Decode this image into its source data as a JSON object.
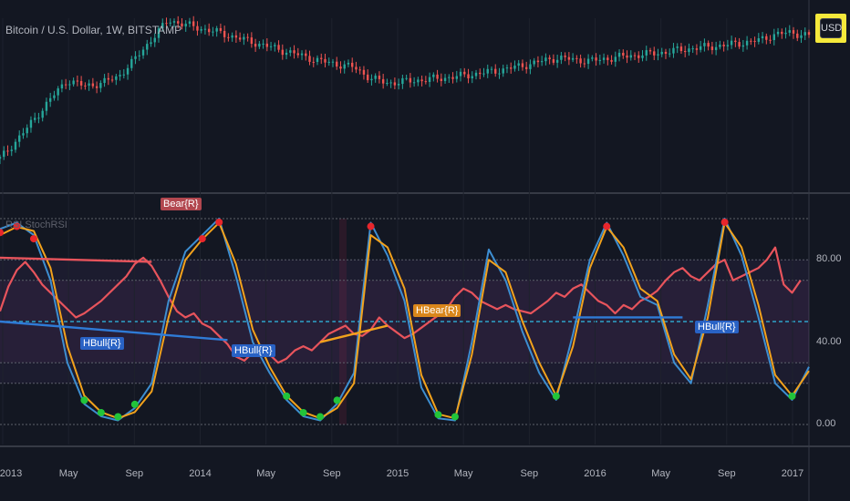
{
  "header": {
    "title": "Bitcoin / U.S. Dollar, 1W, BITSTAMP"
  },
  "currency_button": {
    "label": "USD"
  },
  "indicator": {
    "title": "RSI StochRSI"
  },
  "colors": {
    "background": "#131722",
    "candle_up": "#26a69a",
    "candle_down": "#ef5350",
    "rsi": "#e8545c",
    "stoch_k": "#3d8ed1",
    "stoch_d": "#f2a21c",
    "bull_dot": "#22c43a",
    "bear_dot": "#e8262c",
    "highlight": "#f5e93b"
  },
  "chart_data": [
    {
      "type": "candlestick",
      "title": "Bitcoin / U.S. Dollar, 1W, BITSTAMP",
      "price_trend": [
        [
          0,
          12
        ],
        [
          3,
          30
        ],
        [
          6,
          50
        ],
        [
          8,
          62
        ],
        [
          10,
          58
        ],
        [
          12,
          60
        ],
        [
          14,
          64
        ],
        [
          16,
          75
        ],
        [
          18,
          88
        ],
        [
          20,
          100
        ],
        [
          22,
          97
        ],
        [
          26,
          92
        ],
        [
          30,
          86
        ],
        [
          34,
          80
        ],
        [
          38,
          74
        ],
        [
          42,
          70
        ],
        [
          44,
          63
        ],
        [
          46,
          60
        ],
        [
          50,
          62
        ],
        [
          54,
          64
        ],
        [
          58,
          67
        ],
        [
          62,
          71
        ],
        [
          66,
          76
        ],
        [
          70,
          74
        ],
        [
          74,
          77
        ],
        [
          78,
          79
        ],
        [
          82,
          82
        ],
        [
          86,
          84
        ],
        [
          90,
          87
        ],
        [
          92,
          91
        ],
        [
          94,
          92
        ],
        [
          96,
          90
        ]
      ]
    },
    {
      "type": "line",
      "title": "RSI StochRSI",
      "y_ticks": [
        "80.00",
        "40.00",
        "0.00"
      ],
      "x_ticks": [
        "2013",
        "May",
        "Sep",
        "2014",
        "May",
        "Sep",
        "2015",
        "May",
        "Sep",
        "2016",
        "May",
        "Sep",
        "2017"
      ],
      "levels": [
        100,
        80,
        70,
        50,
        30,
        20,
        0
      ],
      "series": [
        {
          "values": [
            [
              0,
              55
            ],
            [
              1,
              67
            ],
            [
              2,
              75
            ],
            [
              3,
              79
            ],
            [
              4,
              74
            ],
            [
              5,
              68
            ],
            [
              6,
              64
            ],
            [
              7,
              60
            ],
            [
              8,
              56
            ],
            [
              9,
              52
            ],
            [
              10,
              54
            ],
            [
              11,
              57
            ],
            [
              12,
              60
            ],
            [
              13,
              64
            ],
            [
              14,
              68
            ],
            [
              15,
              72
            ],
            [
              16,
              78
            ],
            [
              17,
              81
            ],
            [
              18,
              77
            ],
            [
              19,
              70
            ],
            [
              20,
              62
            ],
            [
              21,
              55
            ],
            [
              22,
              52
            ],
            [
              23,
              54
            ],
            [
              24,
              49
            ],
            [
              25,
              47
            ],
            [
              26,
              43
            ],
            [
              27,
              39
            ],
            [
              28,
              33
            ],
            [
              29,
              31
            ],
            [
              30,
              35
            ],
            [
              31,
              38
            ],
            [
              32,
              34
            ],
            [
              33,
              30
            ],
            [
              34,
              32
            ],
            [
              35,
              36
            ],
            [
              36,
              38
            ],
            [
              37,
              36
            ],
            [
              38,
              40
            ],
            [
              39,
              44
            ],
            [
              40,
              46
            ],
            [
              41,
              48
            ],
            [
              42,
              44
            ],
            [
              43,
              43
            ],
            [
              44,
              46
            ],
            [
              45,
              52
            ],
            [
              46,
              48
            ],
            [
              47,
              45
            ],
            [
              48,
              42
            ],
            [
              49,
              44
            ],
            [
              50,
              47
            ],
            [
              51,
              50
            ],
            [
              52,
              53
            ],
            [
              53,
              56
            ],
            [
              54,
              62
            ],
            [
              55,
              66
            ],
            [
              56,
              64
            ],
            [
              57,
              60
            ],
            [
              58,
              58
            ],
            [
              59,
              56
            ],
            [
              60,
              58
            ],
            [
              61,
              56
            ],
            [
              62,
              55
            ],
            [
              63,
              54
            ],
            [
              64,
              57
            ],
            [
              65,
              60
            ],
            [
              66,
              64
            ],
            [
              67,
              62
            ],
            [
              68,
              66
            ],
            [
              69,
              68
            ],
            [
              70,
              64
            ],
            [
              71,
              60
            ],
            [
              72,
              58
            ],
            [
              73,
              54
            ],
            [
              74,
              58
            ],
            [
              75,
              56
            ],
            [
              76,
              60
            ],
            [
              77,
              62
            ],
            [
              78,
              65
            ],
            [
              79,
              70
            ],
            [
              80,
              74
            ],
            [
              81,
              76
            ],
            [
              82,
              72
            ],
            [
              83,
              70
            ],
            [
              84,
              74
            ],
            [
              85,
              78
            ],
            [
              86,
              80
            ],
            [
              87,
              70
            ],
            [
              88,
              72
            ],
            [
              89,
              74
            ],
            [
              90,
              76
            ],
            [
              91,
              80
            ],
            [
              92,
              86
            ],
            [
              93,
              68
            ],
            [
              94,
              64
            ],
            [
              95,
              70
            ]
          ]
        },
        {
          "values": [
            [
              0,
              95
            ],
            [
              2,
              98
            ],
            [
              4,
              92
            ],
            [
              6,
              70
            ],
            [
              8,
              30
            ],
            [
              10,
              10
            ],
            [
              12,
              4
            ],
            [
              14,
              2
            ],
            [
              16,
              8
            ],
            [
              18,
              20
            ],
            [
              20,
              60
            ],
            [
              22,
              84
            ],
            [
              24,
              92
            ],
            [
              26,
              100
            ],
            [
              28,
              72
            ],
            [
              30,
              40
            ],
            [
              32,
              25
            ],
            [
              34,
              12
            ],
            [
              36,
              4
            ],
            [
              38,
              2
            ],
            [
              40,
              10
            ],
            [
              42,
              25
            ],
            [
              44,
              98
            ],
            [
              46,
              82
            ],
            [
              48,
              60
            ],
            [
              50,
              18
            ],
            [
              52,
              3
            ],
            [
              54,
              2
            ],
            [
              56,
              40
            ],
            [
              58,
              85
            ],
            [
              60,
              70
            ],
            [
              62,
              45
            ],
            [
              64,
              25
            ],
            [
              66,
              12
            ],
            [
              68,
              44
            ],
            [
              70,
              80
            ],
            [
              72,
              98
            ],
            [
              74,
              82
            ],
            [
              76,
              62
            ],
            [
              78,
              58
            ],
            [
              80,
              30
            ],
            [
              82,
              20
            ],
            [
              84,
              58
            ],
            [
              86,
              100
            ],
            [
              88,
              82
            ],
            [
              90,
              52
            ],
            [
              92,
              20
            ],
            [
              94,
              12
            ],
            [
              96,
              28
            ]
          ]
        },
        {
          "values": [
            [
              0,
              92
            ],
            [
              2,
              96
            ],
            [
              4,
              94
            ],
            [
              6,
              76
            ],
            [
              8,
              38
            ],
            [
              10,
              14
            ],
            [
              12,
              6
            ],
            [
              14,
              3
            ],
            [
              16,
              6
            ],
            [
              18,
              16
            ],
            [
              20,
              52
            ],
            [
              22,
              80
            ],
            [
              24,
              90
            ],
            [
              26,
              98
            ],
            [
              28,
              78
            ],
            [
              30,
              46
            ],
            [
              32,
              28
            ],
            [
              34,
              14
            ],
            [
              36,
              6
            ],
            [
              38,
              3
            ],
            [
              40,
              8
            ],
            [
              42,
              20
            ],
            [
              44,
              92
            ],
            [
              46,
              86
            ],
            [
              48,
              66
            ],
            [
              50,
              24
            ],
            [
              52,
              5
            ],
            [
              54,
              3
            ],
            [
              56,
              34
            ],
            [
              58,
              80
            ],
            [
              60,
              74
            ],
            [
              62,
              50
            ],
            [
              64,
              30
            ],
            [
              66,
              14
            ],
            [
              68,
              38
            ],
            [
              70,
              76
            ],
            [
              72,
              96
            ],
            [
              74,
              86
            ],
            [
              76,
              66
            ],
            [
              78,
              60
            ],
            [
              80,
              34
            ],
            [
              82,
              22
            ],
            [
              84,
              52
            ],
            [
              86,
              98
            ],
            [
              88,
              86
            ],
            [
              90,
              58
            ],
            [
              92,
              24
            ],
            [
              94,
              14
            ],
            [
              96,
              26
            ]
          ]
        }
      ],
      "divergences": [
        {
          "label": "Bear{R}",
          "kind": "bear",
          "from": [
            0,
            81
          ],
          "to": [
            18,
            79
          ]
        },
        {
          "label": "HBull{R}",
          "kind": "hbull",
          "from": [
            0,
            50
          ],
          "to": [
            27,
            41
          ]
        },
        {
          "label": "HBull{R}",
          "kind": "hbull",
          "from": [
            27,
            41
          ],
          "to": [
            27,
            41
          ]
        },
        {
          "label": "HBear{R}",
          "kind": "hbear",
          "from": [
            38,
            40
          ],
          "to": [
            46,
            48
          ]
        },
        {
          "label": "HBull{R}",
          "kind": "hbull",
          "from": [
            68,
            52
          ],
          "to": [
            81,
            52
          ]
        }
      ]
    }
  ]
}
